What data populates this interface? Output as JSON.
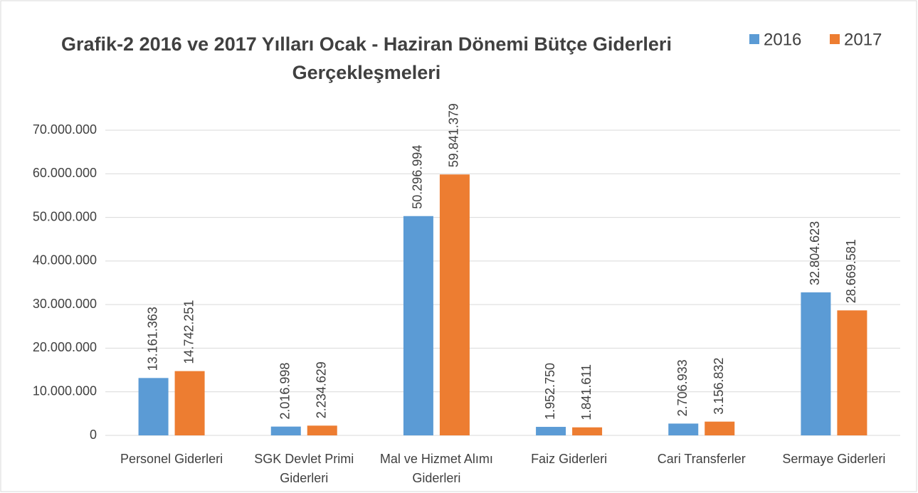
{
  "chart_data": {
    "type": "bar",
    "title": "Grafik-2  2016 ve 2017 Yılları Ocak - Haziran Dönemi Bütçe Giderleri Gerçekleşmeleri",
    "categories": [
      "Personel Giderleri",
      "SGK Devlet Primi Giderleri",
      "Mal ve Hizmet Alımı Giderleri",
      "Faiz Giderleri",
      "Cari Transferler",
      "Sermaye Giderleri"
    ],
    "series": [
      {
        "name": "2016",
        "color": "#5b9bd5",
        "values": [
          13161363,
          2016998,
          50296994,
          1952750,
          2706933,
          32804623
        ],
        "value_labels": [
          "13.161.363",
          "2.016.998",
          "50.296.994",
          "1.952.750",
          "2.706.933",
          "32.804.623"
        ]
      },
      {
        "name": "2017",
        "color": "#ed7d31",
        "values": [
          14742251,
          2234629,
          59841379,
          1841611,
          3156832,
          28669581
        ],
        "value_labels": [
          "14.742.251",
          "2.234.629",
          "59.841.379",
          "1.841.611",
          "3.156.832",
          "28.669.581"
        ]
      }
    ],
    "ylim": [
      0,
      70000000
    ],
    "yticks": [
      0,
      {
        "value": 10000000,
        "label": "10.000.000"
      },
      {
        "value": 20000000,
        "label": "20.000.000"
      },
      {
        "value": 30000000,
        "label": "30.000.000"
      },
      {
        "value": 40000000,
        "label": "40.000.000"
      },
      {
        "value": 50000000,
        "label": "50.000.000"
      },
      {
        "value": 60000000,
        "label": "60.000.000"
      },
      {
        "value": 70000000,
        "label": "70.000.000"
      }
    ],
    "grid": true,
    "legend": "top-right"
  }
}
